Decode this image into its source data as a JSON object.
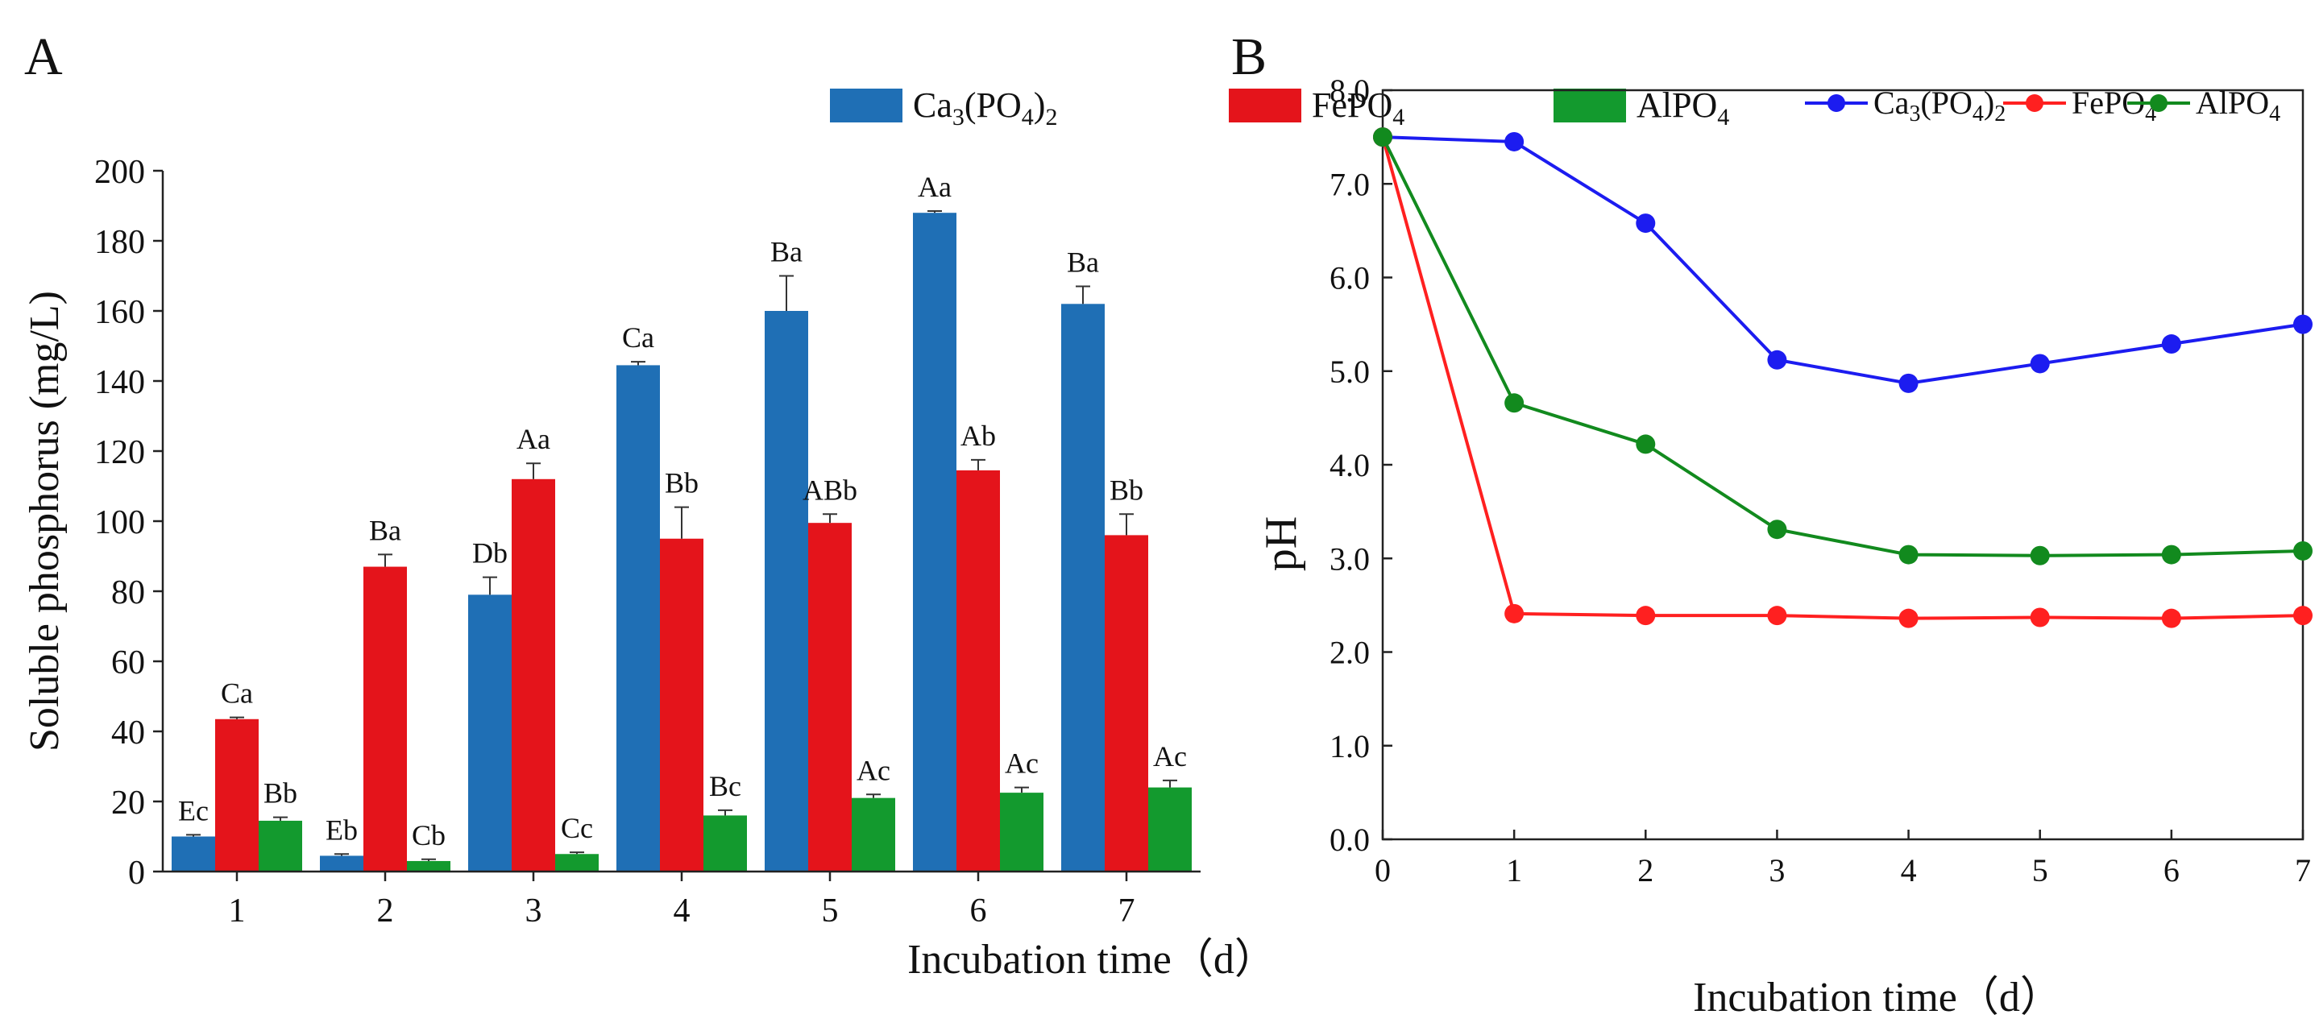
{
  "chart_data": [
    {
      "panel": "A",
      "type": "bar",
      "xlabel": "Incubation time（d）",
      "ylabel": "Soluble phosphorus (mg/L)",
      "ylim": [
        0,
        200
      ],
      "yticks": [
        "0",
        "20",
        "40",
        "60",
        "80",
        "100",
        "120",
        "140",
        "160",
        "180",
        "200"
      ],
      "categories": [
        "1",
        "2",
        "3",
        "4",
        "5",
        "6",
        "7"
      ],
      "legend_position": "top",
      "series": [
        {
          "name": "Ca3(PO4)2",
          "legend": {
            "base": "Ca",
            "sub1": "3",
            "mid": "(PO",
            "sub2": "4",
            "close": ")",
            "sub3": "2"
          },
          "color": "#1f6fb5",
          "values": [
            10,
            4.5,
            79,
            144.5,
            160,
            188,
            162
          ],
          "errors": [
            0.5,
            0.5,
            5,
            1,
            10,
            0.5,
            5
          ],
          "labels": [
            "Ec",
            "Eb",
            "Db",
            "Ca",
            "Ba",
            "Aa",
            "Ba"
          ]
        },
        {
          "name": "FePO4",
          "legend": {
            "base": "FePO",
            "sub1": "4"
          },
          "color": "#e4141b",
          "values": [
            43.5,
            87,
            112,
            95,
            99.5,
            114.5,
            96
          ],
          "errors": [
            0.5,
            3.5,
            4.5,
            9,
            2.5,
            3,
            6
          ],
          "labels": [
            "Ca",
            "Ba",
            "Aa",
            "Bb",
            "ABb",
            "Ab",
            "Bb"
          ]
        },
        {
          "name": "AlPO4",
          "legend": {
            "base": "AlPO",
            "sub1": "4"
          },
          "color": "#139a2e",
          "values": [
            14.5,
            3,
            5,
            16,
            21,
            22.5,
            24
          ],
          "errors": [
            1,
            0.5,
            0.5,
            1.5,
            1,
            1.5,
            2
          ],
          "labels": [
            "Bb",
            "Cb",
            "Cc",
            "Bc",
            "Ac",
            "Ac",
            "Ac"
          ]
        }
      ]
    },
    {
      "panel": "B",
      "type": "line",
      "xlabel": "Incubation time（d）",
      "ylabel": "pH",
      "x": [
        0,
        1,
        2,
        3,
        4,
        5,
        6,
        7
      ],
      "xticks": [
        "0",
        "1",
        "2",
        "3",
        "4",
        "5",
        "6",
        "7"
      ],
      "xlim": [
        0,
        7
      ],
      "ylim": [
        0,
        8
      ],
      "yticks": [
        "0.0",
        "1.0",
        "2.0",
        "3.0",
        "4.0",
        "5.0",
        "6.0",
        "7.0",
        "8.0"
      ],
      "legend_position": "top-right",
      "series": [
        {
          "name": "Ca3(PO4)2",
          "legend": {
            "base": "Ca",
            "sub1": "3",
            "mid": "(PO",
            "sub2": "4",
            "close": ")",
            "sub3": "2"
          },
          "color": "#1c1cf0",
          "values": [
            7.5,
            7.45,
            6.58,
            5.12,
            4.87,
            5.08,
            5.29,
            5.5
          ]
        },
        {
          "name": "FePO4",
          "legend": {
            "base": "FePO",
            "sub1": "4"
          },
          "color": "#ff2020",
          "values": [
            7.5,
            2.41,
            2.39,
            2.39,
            2.36,
            2.37,
            2.36,
            2.39
          ]
        },
        {
          "name": "AlPO4",
          "legend": {
            "base": "AlPO",
            "sub1": "4"
          },
          "color": "#128a1e",
          "values": [
            7.5,
            4.66,
            4.22,
            3.31,
            3.04,
            3.03,
            3.04,
            3.08
          ]
        }
      ]
    }
  ]
}
